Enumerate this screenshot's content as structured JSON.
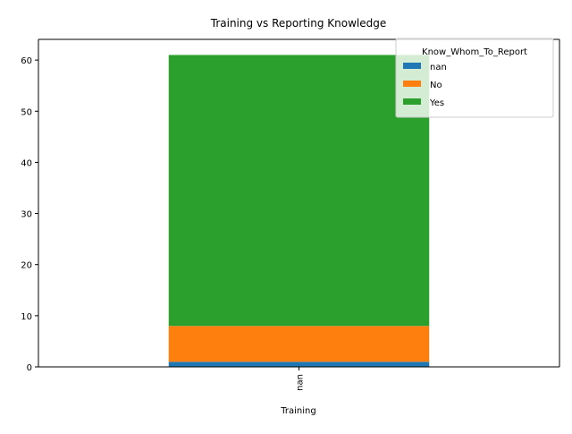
{
  "chart_data": {
    "type": "bar",
    "stacked": true,
    "title": "Training vs Reporting Knowledge",
    "xlabel": "Training",
    "ylabel": "",
    "categories": [
      "nan"
    ],
    "series": [
      {
        "name": "nan",
        "values": [
          1
        ],
        "color": "#1f77b4"
      },
      {
        "name": "No",
        "values": [
          7
        ],
        "color": "#ff7f0e"
      },
      {
        "name": "Yes",
        "values": [
          53
        ],
        "color": "#2ca02c"
      }
    ],
    "ylim": [
      0,
      64.05
    ],
    "yticks": [
      0,
      10,
      20,
      30,
      40,
      50,
      60
    ],
    "grid": false,
    "legend": {
      "title": "Know_Whom_To_Report",
      "position": "top-right"
    }
  }
}
